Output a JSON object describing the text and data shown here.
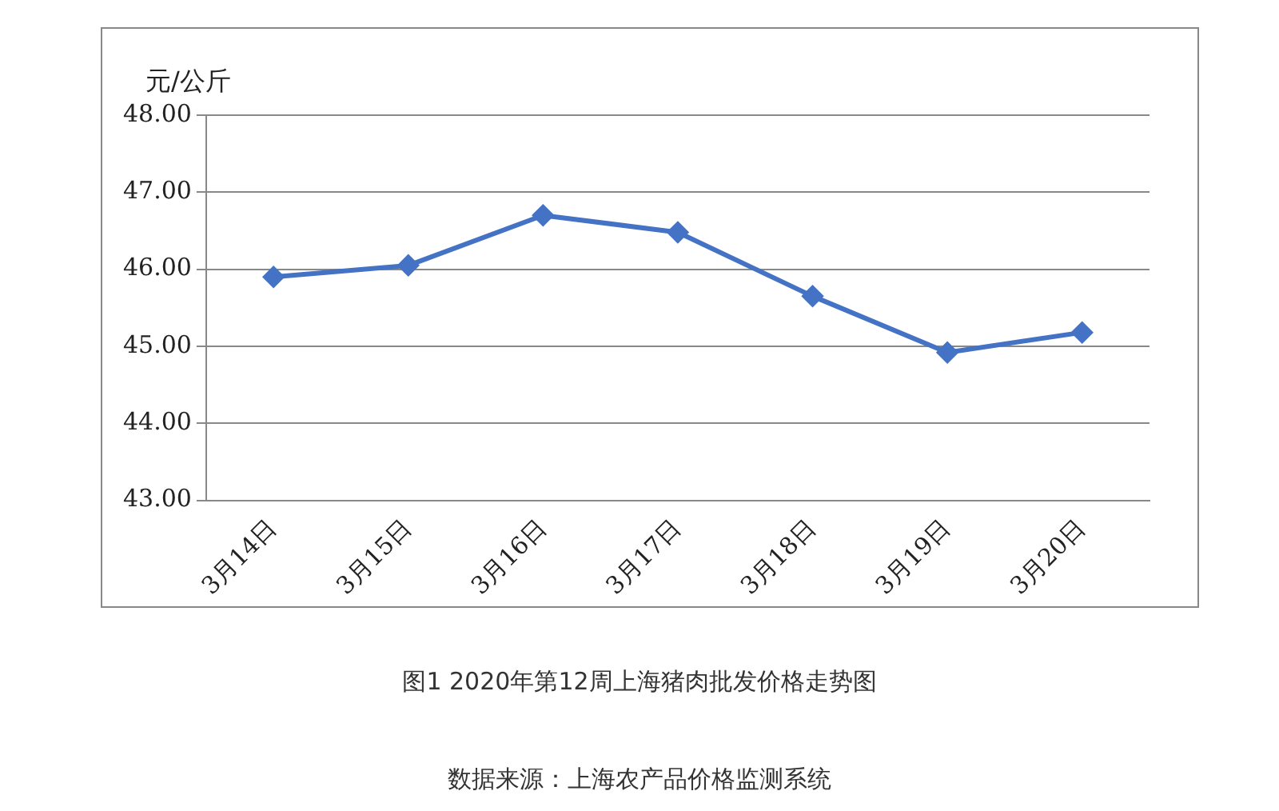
{
  "chart_data": {
    "type": "line",
    "title": "图1 2020年第12周上海猪肉批发价格走势图",
    "ylabel": "元/公斤",
    "annotations": [
      "数据来源：上海农产品价格监测系统"
    ],
    "categories": [
      "3月14日",
      "3月15日",
      "3月16日",
      "3月17日",
      "3月18日",
      "3月19日",
      "3月20日"
    ],
    "series": [
      {
        "color": "#4472c4",
        "values": [
          45.9,
          46.05,
          46.7,
          46.48,
          45.65,
          44.92,
          45.18
        ]
      }
    ],
    "ylim": [
      43,
      48
    ],
    "yticks": [
      {
        "value": 43,
        "label": "43.00"
      },
      {
        "value": 44,
        "label": "44.00"
      },
      {
        "value": 45,
        "label": "45.00"
      },
      {
        "value": 46,
        "label": "46.00"
      },
      {
        "value": 47,
        "label": "47.00"
      },
      {
        "value": 48,
        "label": "48.00"
      }
    ],
    "grid": "y",
    "legend": false,
    "marker": "diamond",
    "line_style": "solid"
  }
}
